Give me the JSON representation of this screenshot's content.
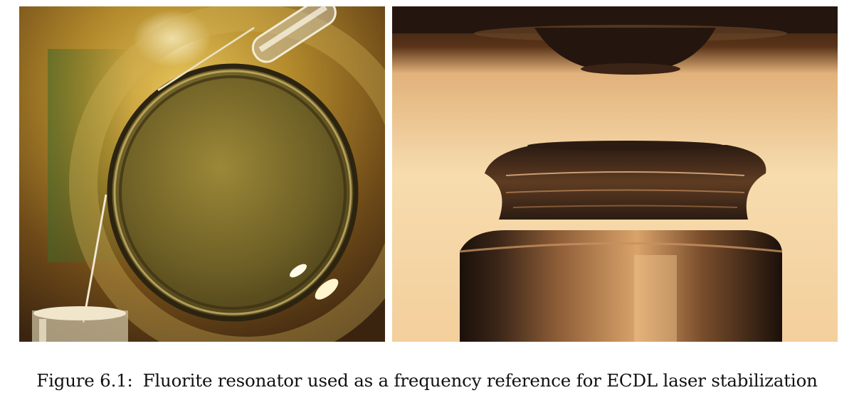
{
  "figure": {
    "label": "Figure 6.1:",
    "caption": "Fluorite resonator used as a frequency reference for ECDL laser stabilization"
  },
  "palette": {
    "left_bg_warm": "#c9a640",
    "left_bg_dark": "#4a2f10",
    "right_bg_light": "#f4d3a2",
    "right_bg_top": "#2a1a10",
    "metal_dark": "#2b1b12"
  }
}
